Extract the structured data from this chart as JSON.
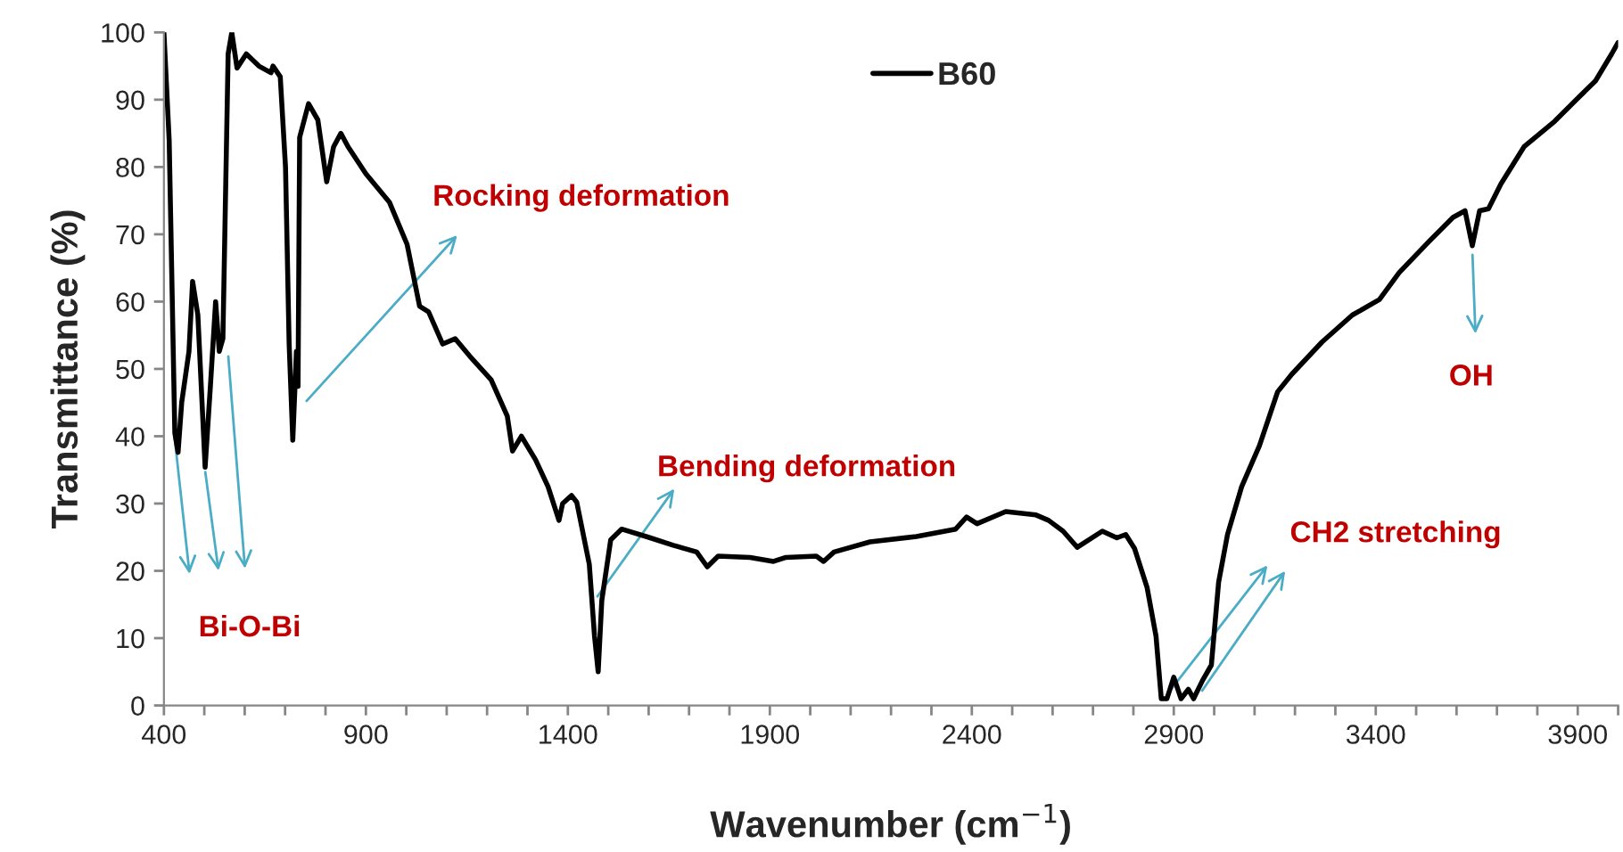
{
  "chart_data": {
    "type": "line",
    "xlabel": "Wavenumber (cm$^{−1}$)",
    "ylabel": "Transmittance (%)",
    "series": [
      {
        "name": "B60",
        "color": "#000000",
        "x": [
          400,
          413,
          427,
          435,
          444,
          462,
          471,
          484,
          502,
          515,
          528,
          537,
          546,
          559,
          568,
          581,
          604,
          635,
          665,
          670,
          688,
          701,
          710,
          719,
          728,
          732,
          736,
          758,
          781,
          803,
          820,
          838,
          856,
          900,
          958,
          1002,
          1033,
          1055,
          1090,
          1121,
          1157,
          1210,
          1250,
          1263,
          1285,
          1320,
          1351,
          1378,
          1387,
          1409,
          1422,
          1453,
          1466,
          1475,
          1484,
          1506,
          1533,
          1599,
          1661,
          1719,
          1745,
          1772,
          1851,
          1909,
          1940,
          2015,
          2033,
          2059,
          2148,
          2263,
          2360,
          2387,
          2413,
          2484,
          2559,
          2590,
          2626,
          2661,
          2723,
          2759,
          2781,
          2803,
          2834,
          2856,
          2869,
          2883,
          2900,
          2918,
          2936,
          2949,
          2971,
          2993,
          3011,
          3033,
          3068,
          3112,
          3157,
          3192,
          3267,
          3342,
          3409,
          3458,
          3533,
          3591,
          3621,
          3639,
          3657,
          3679,
          3710,
          3767,
          3843,
          3900,
          3944,
          3984,
          4000
        ],
        "values": [
          100,
          84,
          40.5,
          37.6,
          45,
          52.6,
          63,
          58,
          35.4,
          47.4,
          60,
          52.6,
          54.5,
          96.8,
          100,
          94.7,
          96.8,
          95,
          94,
          95,
          93.4,
          80,
          53.7,
          39.4,
          52.6,
          47.4,
          84.4,
          89.4,
          87,
          77.8,
          83,
          85,
          83,
          79,
          74.8,
          68.5,
          59.3,
          58.5,
          53.7,
          54.5,
          51.9,
          48.4,
          43,
          37.8,
          40,
          36.5,
          32.5,
          27.5,
          30,
          31.2,
          30.2,
          21,
          10.3,
          5,
          15.6,
          24.6,
          26.2,
          25,
          23.8,
          22.8,
          20.6,
          22.2,
          22,
          21.4,
          22,
          22.2,
          21.4,
          22.8,
          24.3,
          25.1,
          26.2,
          28,
          27,
          28.8,
          28.3,
          27.5,
          25.9,
          23.5,
          25.9,
          24.9,
          25.4,
          23.3,
          17.5,
          10.3,
          1,
          1,
          4.2,
          1,
          2.4,
          1,
          3.7,
          6,
          18.3,
          25.4,
          32.5,
          38.6,
          46.6,
          49.2,
          54,
          58,
          60.3,
          64.3,
          69,
          72.5,
          73.5,
          68.3,
          73.5,
          73.8,
          77.5,
          83,
          86.8,
          90.2,
          92.8,
          96.8,
          98.5
        ]
      }
    ],
    "xlim": [
      400,
      4000
    ],
    "xticks": [
      400,
      {
        "value": 500,
        "label": null
      },
      {
        "value": 600,
        "label": null
      },
      {
        "value": 700,
        "label": null
      },
      {
        "value": 800,
        "label": null
      },
      900,
      {
        "value": 1000,
        "label": null
      },
      {
        "value": 1100,
        "label": null
      },
      {
        "value": 1200,
        "label": null
      },
      {
        "value": 1300,
        "label": null
      },
      1400,
      {
        "value": 1500,
        "label": null
      },
      {
        "value": 1600,
        "label": null
      },
      {
        "value": 1700,
        "label": null
      },
      {
        "value": 1800,
        "label": null
      },
      1900,
      {
        "value": 2000,
        "label": null
      },
      {
        "value": 2100,
        "label": null
      },
      {
        "value": 2200,
        "label": null
      },
      {
        "value": 2300,
        "label": null
      },
      2400,
      {
        "value": 2500,
        "label": null
      },
      {
        "value": 2600,
        "label": null
      },
      {
        "value": 2700,
        "label": null
      },
      {
        "value": 2800,
        "label": null
      },
      2900,
      {
        "value": 3000,
        "label": null
      },
      {
        "value": 3100,
        "label": null
      },
      {
        "value": 3200,
        "label": null
      },
      {
        "value": 3300,
        "label": null
      },
      3400,
      {
        "value": 3500,
        "label": null
      },
      {
        "value": 3600,
        "label": null
      },
      {
        "value": 3700,
        "label": null
      },
      {
        "value": 3800,
        "label": null
      },
      3900,
      {
        "value": 4000,
        "label": null
      }
    ],
    "ylim": [
      0,
      100
    ],
    "yticks": [
      0,
      10,
      20,
      30,
      40,
      50,
      60,
      70,
      80,
      90,
      100
    ],
    "grid": false,
    "legend": "top",
    "marker": "none",
    "line_style": "solid",
    "annotations": [
      {
        "text": "Rocking deformation",
        "x": 745,
        "y": 44.7
      },
      {
        "text": "Bending deformation",
        "x": 1466,
        "y": 15.6
      },
      "Bi-O-Bi",
      {
        "text": "CH2 stretching",
        "x": 2883,
        "y": 1.6
      },
      {
        "text": "OH",
        "x": 3639,
        "y": 67.7
      }
    ]
  }
}
